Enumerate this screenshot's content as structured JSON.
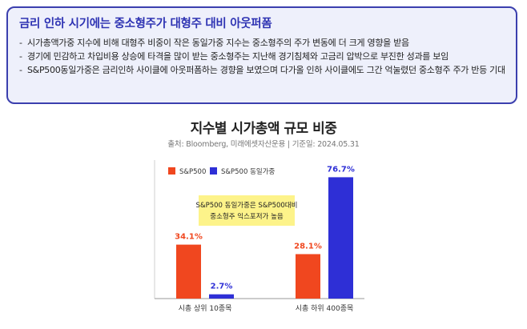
{
  "summary": {
    "title": "금리 인하 시기에는 중소형주가 대형주 대비 아웃퍼폼",
    "bullets": [
      "시가총액가중 지수에 비해 대형주 비중이 작은 동일가중 지수는 중소형주의 주가 변동에 더 크게 영향을 받음",
      "경기에 민감하고 차입비용 상승에 타격을 많이 받는 중소형주는 지난해 경기침체와 고금리 압박으로 부진한 성과를 보임",
      "S&P500동일가중은 금리인하 사이클에 아웃퍼폼하는 경향을 보였으며 다가올 인하 사이클에도 그간 억눌렸던 중소형주 주가 반등 기대"
    ]
  },
  "chart_data": {
    "type": "bar",
    "title": "지수별 시가총액 규모 비중",
    "source": "출처: Bloomberg, 미래에셋자산운용 | 기준일: 2024.05.31",
    "categories": [
      "시총 상위 10종목",
      "시총 하위 400종목"
    ],
    "series": [
      {
        "name": "S&P500",
        "values": [
          34.1,
          28.1
        ],
        "color": "#f0471f"
      },
      {
        "name": "S&P500 동일가중",
        "values": [
          2.7,
          76.7
        ],
        "color": "#2e2fd6"
      }
    ],
    "value_labels": [
      [
        "34.1%",
        "28.1%"
      ],
      [
        "2.7%",
        "76.7%"
      ]
    ],
    "ylim": [
      0,
      85
    ],
    "grid": false,
    "legend_position": "top-left",
    "annotation": {
      "lines": [
        "S&P500 동일가중은 S&P500대비",
        "중소형주 익스포저가 높음"
      ],
      "color": "#fdf38a"
    }
  }
}
